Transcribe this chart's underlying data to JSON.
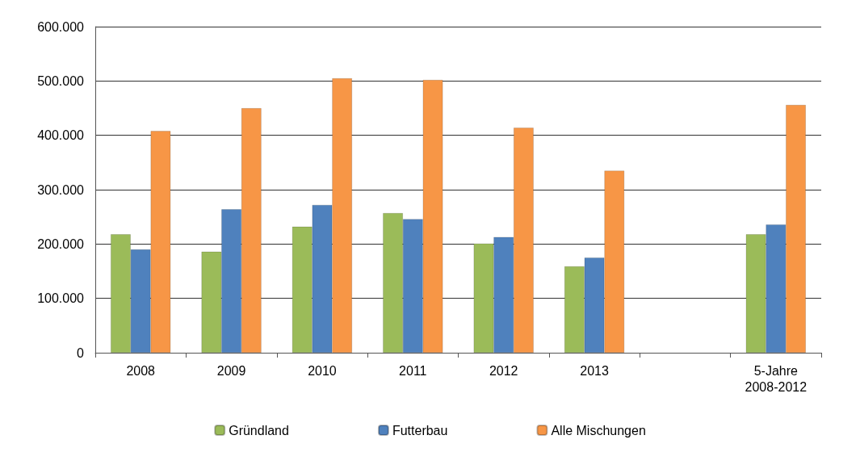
{
  "chart_data": {
    "type": "bar",
    "categories": [
      "2008",
      "2009",
      "2010",
      "2011",
      "2012",
      "2013",
      null,
      "5-Jahre\n2008-2012"
    ],
    "series": [
      {
        "name": "Gründland",
        "color": "#9bbb59",
        "values": [
          218000,
          186000,
          232000,
          257000,
          201000,
          159000,
          null,
          218000
        ]
      },
      {
        "name": "Futterbau",
        "color": "#4f81bd",
        "values": [
          190000,
          264000,
          272000,
          246000,
          213000,
          175000,
          null,
          236000
        ]
      },
      {
        "name": "Alle Mischungen",
        "color": "#f79646",
        "values": [
          408000,
          450000,
          505000,
          502000,
          414000,
          335000,
          null,
          456000
        ]
      }
    ],
    "ylim": [
      0,
      600000
    ],
    "yticks": [
      {
        "value": 0,
        "label": "0"
      },
      {
        "value": 100000,
        "label": "100.000"
      },
      {
        "value": 200000,
        "label": "200.000"
      },
      {
        "value": 300000,
        "label": "300.000"
      },
      {
        "value": 400000,
        "label": "400.000"
      },
      {
        "value": 500000,
        "label": "500.000"
      },
      {
        "value": 600000,
        "label": "600.000"
      }
    ],
    "grid": "y",
    "legend": "bottom"
  }
}
